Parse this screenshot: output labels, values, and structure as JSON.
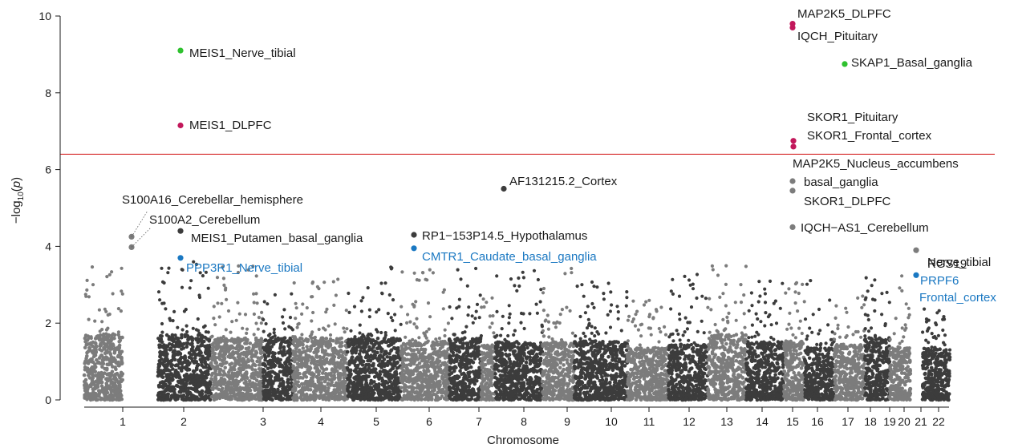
{
  "chart_data": {
    "type": "scatter",
    "subtype": "manhattan",
    "xlabel": "Chromosome",
    "ylabel": "−log10(p)",
    "ylim": [
      0,
      10
    ],
    "yticks": [
      0,
      2,
      4,
      6,
      8,
      10
    ],
    "threshold": 6.4,
    "grid": false,
    "legend": "none",
    "colors": {
      "dark": "#3c3c3c",
      "light": "#7c7c7c",
      "threshold": "#d62728",
      "green": "#2fc12f",
      "magenta": "#c2185b",
      "blue": "#1a78c2",
      "text": "#1a1a1a"
    },
    "chromosomes": [
      {
        "label": "1",
        "bg_max": 2.0,
        "peak": 4.25
      },
      {
        "label": "2",
        "bg_max": 2.0,
        "peak": 9.1
      },
      {
        "label": "3",
        "bg_max": 1.9,
        "peak": 3.5
      },
      {
        "label": "4",
        "bg_max": 1.9,
        "peak": 2.8
      },
      {
        "label": "5",
        "bg_max": 1.9,
        "peak": 3.2
      },
      {
        "label": "6",
        "bg_max": 1.9,
        "peak": 4.3
      },
      {
        "label": "7",
        "bg_max": 1.8,
        "peak": 3.4
      },
      {
        "label": "8",
        "bg_max": 1.9,
        "peak": 5.5
      },
      {
        "label": "9",
        "bg_max": 1.7,
        "peak": 2.8
      },
      {
        "label": "10",
        "bg_max": 1.8,
        "peak": 3.4
      },
      {
        "label": "11",
        "bg_max": 1.8,
        "peak": 3.6
      },
      {
        "label": "12",
        "bg_max": 1.8,
        "peak": 3.1
      },
      {
        "label": "13",
        "bg_max": 1.6,
        "peak": 2.6
      },
      {
        "label": "14",
        "bg_max": 1.7,
        "peak": 3.4
      },
      {
        "label": "15",
        "bg_max": 2.0,
        "peak": 9.8
      },
      {
        "label": "16",
        "bg_max": 1.8,
        "peak": 3.3
      },
      {
        "label": "17",
        "bg_max": 1.8,
        "peak": 8.8
      },
      {
        "label": "18",
        "bg_max": 1.6,
        "peak": 3.2
      },
      {
        "label": "19",
        "bg_max": 1.7,
        "peak": 2.8
      },
      {
        "label": "20",
        "bg_max": 1.9,
        "peak": 3.9
      },
      {
        "label": "21",
        "bg_max": 1.6,
        "peak": 3.7
      },
      {
        "label": "22",
        "bg_max": 1.6,
        "peak": 2.5
      }
    ],
    "highlights": [
      {
        "chr": "2",
        "y": 9.1,
        "label": "MEIS1_Nerve_tibial",
        "color": "green"
      },
      {
        "chr": "2",
        "y": 7.15,
        "label": "MEIS1_DLPFC",
        "color": "magenta"
      },
      {
        "chr": "2",
        "y": 4.4,
        "label": "MEIS1_Putamen_basal_ganglia",
        "color": "dark"
      },
      {
        "chr": "2",
        "y": 3.7,
        "label": "PPP3R1_Nerve_tibial",
        "color": "blue"
      },
      {
        "chr": "1",
        "y": 4.25,
        "label": "S100A16_Cerebellar_hemisphere",
        "color": "light"
      },
      {
        "chr": "1",
        "y": 3.98,
        "label": "S100A2_Cerebellum",
        "color": "light"
      },
      {
        "chr": "6",
        "y": 4.3,
        "label": "RP1−153P14.5_Hypothalamus",
        "color": "dark"
      },
      {
        "chr": "6",
        "y": 3.95,
        "label": "CMTR1_Caudate_basal_ganglia",
        "color": "blue"
      },
      {
        "chr": "8",
        "y": 5.5,
        "label": "AF131215.2_Cortex",
        "color": "dark"
      },
      {
        "chr": "15",
        "y": 9.8,
        "label": "MAP2K5_DLPFC",
        "color": "magenta"
      },
      {
        "chr": "15",
        "y": 9.7,
        "label": "IQCH_Pituitary",
        "color": "magenta"
      },
      {
        "chr": "15",
        "y": 6.75,
        "label": "SKOR1_Pituitary",
        "color": "magenta"
      },
      {
        "chr": "15",
        "y": 6.6,
        "label": "SKOR1_Frontal_cortex",
        "color": "magenta"
      },
      {
        "chr": "15",
        "y": 5.7,
        "label": "MAP2K5_Nucleus_accumbens basal_ganglia",
        "color": "light"
      },
      {
        "chr": "15",
        "y": 5.45,
        "label": "SKOR1_DLPFC",
        "color": "light"
      },
      {
        "chr": "15",
        "y": 4.5,
        "label": "IQCH−AS1_Cerebellum",
        "color": "light"
      },
      {
        "chr": "17",
        "y": 8.75,
        "label": "SKAP1_Basal_ganglia",
        "color": "green"
      },
      {
        "chr": "20",
        "y": 3.9,
        "label": "RGS19 Nerve_tibial",
        "color": "light"
      },
      {
        "chr": "20",
        "y": 3.25,
        "label": "PRPF6 Frontal_cortex",
        "color": "blue"
      }
    ]
  }
}
